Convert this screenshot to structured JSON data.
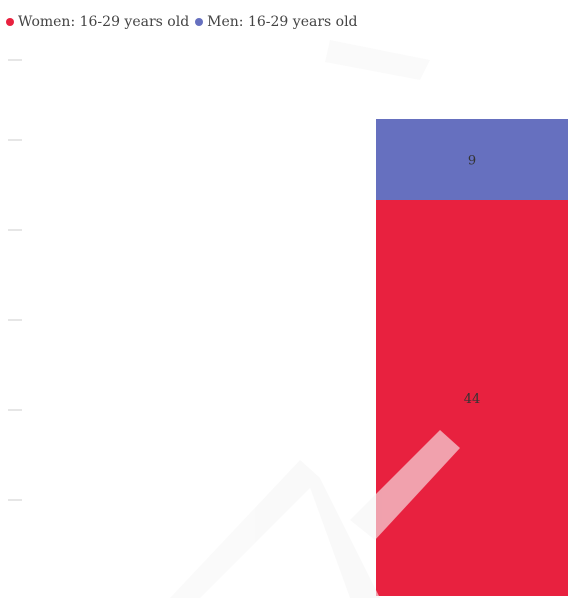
{
  "chart_data": {
    "type": "bar",
    "stacked": true,
    "categories": [
      ""
    ],
    "series": [
      {
        "name": "Women: 16-29 years old",
        "values": [
          44
        ],
        "color": "#e8213f"
      },
      {
        "name": "Men: 16-29 years old",
        "values": [
          9
        ],
        "color": "#6670bf"
      }
    ],
    "title": "",
    "xlabel": "",
    "ylabel": "",
    "ylim": [
      0,
      54
    ],
    "legend_position": "top-left",
    "grid": false
  }
}
